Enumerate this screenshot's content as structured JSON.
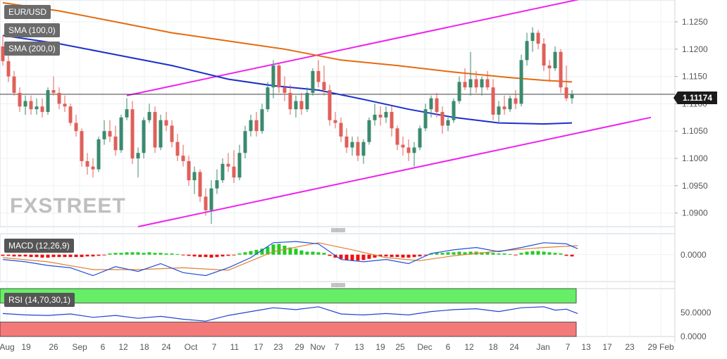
{
  "chart_data": [
    {
      "panel": "price",
      "type": "candlestick",
      "symbol": "EUR/USD",
      "indicators": [
        "SMA (100,0)",
        "SMA (200,0)"
      ],
      "y_ticks": [
        "1.1250",
        "1.1200",
        "1.1150",
        "1.1100",
        "1.1050",
        "1.1000",
        "1.0950",
        "1.0900"
      ],
      "ylim": [
        1.0875,
        1.129
      ],
      "last_price": "1.11174",
      "watermark": "FXSTREET",
      "candles": [
        [
          1.1205,
          1.1225,
          1.117,
          1.1178
        ],
        [
          1.1178,
          1.1195,
          1.114,
          1.115
        ],
        [
          1.115,
          1.116,
          1.1115,
          1.112
        ],
        [
          1.112,
          1.113,
          1.1085,
          1.1095
        ],
        [
          1.1095,
          1.1115,
          1.108,
          1.1105
        ],
        [
          1.1105,
          1.1115,
          1.108,
          1.109
        ],
        [
          1.109,
          1.111,
          1.108,
          1.1095
        ],
        [
          1.1095,
          1.111,
          1.1075,
          1.1085
        ],
        [
          1.1085,
          1.113,
          1.108,
          1.1125
        ],
        [
          1.1125,
          1.115,
          1.1115,
          1.112
        ],
        [
          1.112,
          1.113,
          1.109,
          1.11
        ],
        [
          1.11,
          1.1115,
          1.1085,
          1.1095
        ],
        [
          1.1095,
          1.11,
          1.106,
          1.1065
        ],
        [
          1.1065,
          1.108,
          1.104,
          1.105
        ],
        [
          1.105,
          1.1055,
          1.0985,
          1.0995
        ],
        [
          1.0995,
          1.101,
          1.097,
          1.0985
        ],
        [
          1.0985,
          1.1,
          1.0965,
          1.098
        ],
        [
          1.098,
          1.104,
          1.0975,
          1.1035
        ],
        [
          1.1035,
          1.107,
          1.1025,
          1.105
        ],
        [
          1.105,
          1.107,
          1.103,
          1.104
        ],
        [
          1.104,
          1.106,
          1.1005,
          1.1015
        ],
        [
          1.1015,
          1.108,
          1.101,
          1.1075
        ],
        [
          1.1075,
          1.111,
          1.107,
          1.109
        ],
        [
          1.109,
          1.1105,
          1.099,
          1.1
        ],
        [
          1.1,
          1.102,
          1.0965,
          1.101
        ],
        [
          1.101,
          1.1075,
          1.1,
          1.107
        ],
        [
          1.107,
          1.11,
          1.1065,
          1.1085
        ],
        [
          1.1085,
          1.1095,
          1.101,
          1.102
        ],
        [
          1.102,
          1.108,
          1.1015,
          1.107
        ],
        [
          1.107,
          1.1085,
          1.105,
          1.106
        ],
        [
          1.106,
          1.107,
          1.102,
          1.103
        ],
        [
          1.103,
          1.1045,
          1.0995,
          1.1005
        ],
        [
          1.1005,
          1.1025,
          1.0985,
          1.0995
        ],
        [
          1.0995,
          1.1005,
          1.095,
          1.096
        ],
        [
          1.096,
          1.0985,
          1.0935,
          1.0975
        ],
        [
          1.0975,
          1.098,
          1.092,
          1.093
        ],
        [
          1.093,
          1.0945,
          1.0895,
          1.0905
        ],
        [
          1.0905,
          1.096,
          1.088,
          1.0945
        ],
        [
          1.0945,
          1.098,
          1.0935,
          1.096
        ],
        [
          1.096,
          1.1,
          1.0955,
          1.099
        ],
        [
          1.099,
          1.101,
          1.0975,
          1.0985
        ],
        [
          1.0985,
          1.1015,
          1.0955,
          1.0965
        ],
        [
          1.0965,
          1.1025,
          1.096,
          1.101
        ],
        [
          1.101,
          1.106,
          1.1,
          1.105
        ],
        [
          1.105,
          1.108,
          1.104,
          1.107
        ],
        [
          1.107,
          1.1085,
          1.104,
          1.105
        ],
        [
          1.105,
          1.11,
          1.1045,
          1.109
        ],
        [
          1.109,
          1.114,
          1.1085,
          1.113
        ],
        [
          1.113,
          1.118,
          1.111,
          1.117
        ],
        [
          1.117,
          1.1175,
          1.112,
          1.113
        ],
        [
          1.113,
          1.115,
          1.1105,
          1.112
        ],
        [
          1.112,
          1.1135,
          1.108,
          1.109
        ],
        [
          1.109,
          1.1115,
          1.1075,
          1.1105
        ],
        [
          1.1105,
          1.112,
          1.108,
          1.109
        ],
        [
          1.109,
          1.113,
          1.1085,
          1.112
        ],
        [
          1.112,
          1.1165,
          1.1115,
          1.116
        ],
        [
          1.116,
          1.118,
          1.113,
          1.114
        ],
        [
          1.114,
          1.117,
          1.1115,
          1.1125
        ],
        [
          1.1125,
          1.1135,
          1.106,
          1.107
        ],
        [
          1.107,
          1.1085,
          1.1055,
          1.1065
        ],
        [
          1.1065,
          1.1075,
          1.103,
          1.104
        ],
        [
          1.104,
          1.1055,
          1.101,
          1.102
        ],
        [
          1.102,
          1.104,
          1.1005,
          1.103
        ],
        [
          1.103,
          1.104,
          1.0995,
          1.1005
        ],
        [
          1.1005,
          1.1035,
          1.099,
          1.103
        ],
        [
          1.103,
          1.1075,
          1.1025,
          1.107
        ],
        [
          1.107,
          1.11,
          1.106,
          1.108
        ],
        [
          1.108,
          1.1095,
          1.106,
          1.1075
        ],
        [
          1.1075,
          1.1095,
          1.1065,
          1.1085
        ],
        [
          1.1085,
          1.1095,
          1.104,
          1.1055
        ],
        [
          1.1055,
          1.106,
          1.1015,
          1.1025
        ],
        [
          1.1025,
          1.104,
          1.1005,
          1.102
        ],
        [
          1.102,
          1.1035,
          1.0995,
          1.101
        ],
        [
          1.101,
          1.103,
          1.0985,
          1.102
        ],
        [
          1.102,
          1.106,
          1.1015,
          1.1055
        ],
        [
          1.1055,
          1.11,
          1.105,
          1.109
        ],
        [
          1.109,
          1.1115,
          1.1075,
          1.111
        ],
        [
          1.111,
          1.112,
          1.1075,
          1.1085
        ],
        [
          1.1085,
          1.1095,
          1.1045,
          1.106
        ],
        [
          1.106,
          1.1075,
          1.105,
          1.107
        ],
        [
          1.107,
          1.111,
          1.1065,
          1.1105
        ],
        [
          1.1105,
          1.115,
          1.11,
          1.114
        ],
        [
          1.114,
          1.1165,
          1.1125,
          1.113
        ],
        [
          1.113,
          1.1195,
          1.1115,
          1.1145
        ],
        [
          1.1145,
          1.116,
          1.112,
          1.113
        ],
        [
          1.113,
          1.115,
          1.1115,
          1.1145
        ],
        [
          1.1145,
          1.116,
          1.1125,
          1.113
        ],
        [
          1.113,
          1.1145,
          1.107,
          1.108
        ],
        [
          1.108,
          1.1105,
          1.1065,
          1.1095
        ],
        [
          1.1095,
          1.1115,
          1.108,
          1.109
        ],
        [
          1.109,
          1.1115,
          1.1085,
          1.111
        ],
        [
          1.111,
          1.1125,
          1.109,
          1.11
        ],
        [
          1.11,
          1.119,
          1.1095,
          1.118
        ],
        [
          1.118,
          1.123,
          1.117,
          1.1215
        ],
        [
          1.1215,
          1.124,
          1.1195,
          1.123
        ],
        [
          1.123,
          1.1235,
          1.12,
          1.121
        ],
        [
          1.121,
          1.122,
          1.116,
          1.117
        ],
        [
          1.117,
          1.118,
          1.114,
          1.1165
        ],
        [
          1.1165,
          1.1205,
          1.116,
          1.1195
        ],
        [
          1.1195,
          1.12,
          1.112,
          1.113
        ],
        [
          1.113,
          1.117,
          1.1105,
          1.111
        ],
        [
          1.111,
          1.1125,
          1.11,
          1.1117
        ]
      ],
      "sma100": [
        [
          0,
          1.1225
        ],
        [
          10,
          1.121
        ],
        [
          20,
          1.119
        ],
        [
          30,
          1.117
        ],
        [
          40,
          1.1145
        ],
        [
          48,
          1.1133
        ],
        [
          56,
          1.1125
        ],
        [
          64,
          1.1108
        ],
        [
          72,
          1.109
        ],
        [
          80,
          1.1075
        ],
        [
          88,
          1.1065
        ],
        [
          96,
          1.1063
        ],
        [
          101,
          1.1065
        ]
      ],
      "sma200": [
        [
          0,
          1.1285
        ],
        [
          10,
          1.127
        ],
        [
          20,
          1.125
        ],
        [
          30,
          1.123
        ],
        [
          40,
          1.1215
        ],
        [
          50,
          1.12
        ],
        [
          60,
          1.118
        ],
        [
          70,
          1.117
        ],
        [
          80,
          1.1158
        ],
        [
          90,
          1.1148
        ],
        [
          96,
          1.1143
        ],
        [
          101,
          1.114
        ]
      ],
      "trendlines": [
        {
          "from": [
            22,
            1.1115
          ],
          "to": [
            104,
            1.1295
          ]
        },
        {
          "from": [
            24,
            1.0875
          ],
          "to": [
            115,
            1.1075
          ]
        }
      ],
      "hline": 1.11174
    },
    {
      "panel": "macd",
      "type": "macd",
      "label": "MACD (12,26,9)",
      "y_ticks": [
        "0.0000"
      ],
      "ylim": [
        -0.0045,
        0.0035
      ],
      "histogram": [
        -0.0002,
        -0.0002,
        -0.0003,
        -0.0003,
        -0.0003,
        -0.0004,
        -0.0004,
        -0.0005,
        -0.0005,
        -0.0004,
        -0.0004,
        -0.0004,
        -0.0004,
        -0.0004,
        -0.0004,
        -0.0003,
        -0.0003,
        -0.0002,
        -0.0001,
        0.0002,
        0.0003,
        0.0003,
        0.0004,
        0.0004,
        0.0004,
        0.0003,
        0.0004,
        0.0003,
        0.0003,
        0.0002,
        0.0002,
        0.0001,
        -0.0001,
        -0.0002,
        -0.0003,
        -0.0004,
        -0.0004,
        -0.0005,
        -0.0004,
        -0.0003,
        -0.0002,
        -0.0001,
        0.0002,
        0.0004,
        0.0006,
        0.0008,
        0.001,
        0.0013,
        0.0017,
        0.0018,
        0.0015,
        0.0012,
        0.001,
        0.0007,
        0.0005,
        0.0005,
        0.0004,
        0.0003,
        -0.0002,
        -0.0005,
        -0.0007,
        -0.0009,
        -0.001,
        -0.001,
        -0.0009,
        -0.0007,
        -0.0005,
        -0.0003,
        -0.0003,
        -0.0004,
        -0.0004,
        -0.0005,
        -0.0005,
        -0.0004,
        -0.0003,
        -0.0001,
        0.0002,
        0.0003,
        0.0003,
        0.0004,
        0.0004,
        0.0005,
        0.0004,
        0.0005,
        0.0005,
        0.0004,
        0.0004,
        0.0003,
        0.0002,
        0.0002,
        0.0001,
        -0.0001,
        0.0003,
        0.0005,
        0.0006,
        0.0006,
        0.0005,
        0.0004,
        0.0003,
        0.0002,
        -0.0002,
        -0.0003
      ],
      "macd_line": [
        [
          0,
          -0.0008
        ],
        [
          4,
          -0.0012
        ],
        [
          8,
          -0.0018
        ],
        [
          12,
          -0.0022
        ],
        [
          16,
          -0.0035
        ],
        [
          20,
          -0.002
        ],
        [
          24,
          -0.0028
        ],
        [
          28,
          -0.0015
        ],
        [
          32,
          -0.003
        ],
        [
          36,
          -0.0035
        ],
        [
          40,
          -0.0022
        ],
        [
          44,
          -0.0005
        ],
        [
          48,
          0.002
        ],
        [
          52,
          0.0022
        ],
        [
          56,
          0.0018
        ],
        [
          60,
          -0.0008
        ],
        [
          64,
          -0.0012
        ],
        [
          68,
          -0.0008
        ],
        [
          72,
          -0.0015
        ],
        [
          76,
          0.0002
        ],
        [
          80,
          0.0008
        ],
        [
          84,
          0.0012
        ],
        [
          88,
          0.0005
        ],
        [
          92,
          0.0012
        ],
        [
          96,
          0.002
        ],
        [
          100,
          0.0018
        ],
        [
          102,
          0.001
        ]
      ],
      "signal_line": [
        [
          0,
          -0.0005
        ],
        [
          8,
          -0.0012
        ],
        [
          16,
          -0.0025
        ],
        [
          24,
          -0.0025
        ],
        [
          32,
          -0.0022
        ],
        [
          40,
          -0.0026
        ],
        [
          48,
          0.0005
        ],
        [
          56,
          0.002
        ],
        [
          62,
          0.0008
        ],
        [
          68,
          -0.0005
        ],
        [
          74,
          -0.001
        ],
        [
          80,
          -0.0002
        ],
        [
          88,
          0.0006
        ],
        [
          96,
          0.0012
        ],
        [
          102,
          0.0015
        ]
      ]
    },
    {
      "panel": "rsi",
      "type": "rsi",
      "label": "RSI (14,70,30,1)",
      "y_ticks": [
        "50.0000",
        "0.0000"
      ],
      "ylim": [
        0,
        100
      ],
      "overbought": 70,
      "oversold": 30,
      "values": [
        [
          0,
          48
        ],
        [
          4,
          45
        ],
        [
          8,
          44
        ],
        [
          12,
          47
        ],
        [
          16,
          40
        ],
        [
          20,
          44
        ],
        [
          24,
          38
        ],
        [
          28,
          42
        ],
        [
          32,
          36
        ],
        [
          36,
          32
        ],
        [
          40,
          44
        ],
        [
          44,
          52
        ],
        [
          48,
          60
        ],
        [
          52,
          56
        ],
        [
          56,
          62
        ],
        [
          60,
          47
        ],
        [
          64,
          45
        ],
        [
          68,
          48
        ],
        [
          72,
          45
        ],
        [
          76,
          52
        ],
        [
          80,
          56
        ],
        [
          84,
          58
        ],
        [
          88,
          52
        ],
        [
          92,
          60
        ],
        [
          96,
          62
        ],
        [
          98,
          55
        ],
        [
          100,
          57
        ],
        [
          102,
          48
        ]
      ]
    }
  ],
  "x_labels": [
    "Aug",
    "19",
    "26",
    "Sep",
    "6",
    "12",
    "18",
    "24",
    "Oct",
    "7",
    "11",
    "17",
    "23",
    "29",
    "Nov",
    "7",
    "13",
    "19",
    "25",
    "Dec",
    "6",
    "12",
    "18",
    "24",
    "Jan",
    "7",
    "13",
    "17",
    "23",
    "29 Feb"
  ],
  "colors": {
    "bull": "#3b8a6e",
    "bear": "#e0605a",
    "sma100": "#1c2fcc",
    "sma200": "#e56b10",
    "trend": "#ee22ee",
    "macd_line": "#2250d8",
    "signal_line": "#e08030",
    "hist_pos": "#22cc22",
    "hist_neg": "#ee1111",
    "rsi_line": "#2244cc",
    "rsi_overbought": "#66ee66",
    "rsi_oversold": "#f47a7a"
  }
}
